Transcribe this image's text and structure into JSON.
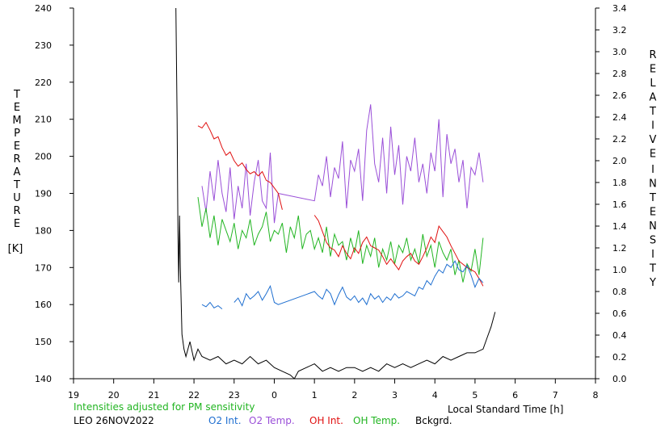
{
  "chart_data": {
    "type": "line",
    "left_axis": {
      "label_letters": [
        "T",
        "E",
        "M",
        "P",
        "E",
        "R",
        "A",
        "T",
        "U",
        "R",
        "E"
      ],
      "unit": "[K]",
      "range": [
        140,
        240
      ],
      "ticks": [
        140,
        150,
        160,
        170,
        180,
        190,
        200,
        210,
        220,
        230,
        240
      ]
    },
    "right_axis": {
      "label_letters_1": [
        "R",
        "E",
        "L",
        "A",
        "T",
        "I",
        "V",
        "E"
      ],
      "label_letters_2": [
        "I",
        "N",
        "T",
        "E",
        "N",
        "S",
        "I",
        "T",
        "Y"
      ],
      "range": [
        0.0,
        3.4
      ],
      "ticks": [
        "0.0",
        "0.2",
        "0.4",
        "0.6",
        "0.8",
        "1.0",
        "1.2",
        "1.4",
        "1.6",
        "1.8",
        "2.0",
        "2.2",
        "2.4",
        "2.6",
        "2.8",
        "3.0",
        "3.2",
        "3.4"
      ]
    },
    "x_axis": {
      "title": "Local Standard Time [h]",
      "range": [
        19,
        32
      ],
      "tick_labels": [
        "19",
        "20",
        "21",
        "22",
        "23",
        "0",
        "1",
        "2",
        "3",
        "4",
        "5",
        "6",
        "7",
        "8"
      ]
    },
    "note": "Intensities adjusted for PM sensitivity",
    "station": "LEO 26NOV2022",
    "legend": [
      {
        "label": "O2 Int.",
        "color": "#1f6fd0"
      },
      {
        "label": "O2 Temp.",
        "color": "#9a4fd8"
      },
      {
        "label": "OH Int.",
        "color": "#e01010"
      },
      {
        "label": "OH Temp.",
        "color": "#22b522"
      },
      {
        "label": "Bckgrd.",
        "color": "#000000"
      }
    ],
    "series": [
      {
        "name": "O2 Temp.",
        "axis": "left",
        "x": [
          22.2,
          22.3,
          22.4,
          22.5,
          22.6,
          22.7,
          22.8,
          22.9,
          23.0,
          23.1,
          23.2,
          23.3,
          23.4,
          23.5,
          23.6,
          23.7,
          23.8,
          23.9,
          24.0,
          24.1,
          25.0,
          25.1,
          25.2,
          25.3,
          25.4,
          25.5,
          25.6,
          25.7,
          25.8,
          25.9,
          26.0,
          26.1,
          26.2,
          26.3,
          26.4,
          26.5,
          26.6,
          26.7,
          26.8,
          26.9,
          27.0,
          27.1,
          27.2,
          27.3,
          27.4,
          27.5,
          27.6,
          27.7,
          27.8,
          27.9,
          28.0,
          28.1,
          28.2,
          28.3,
          28.4,
          28.5,
          28.6,
          28.7,
          28.8,
          28.9,
          29.0,
          29.1,
          29.2
        ],
        "y": [
          192,
          185,
          196,
          188,
          199,
          190,
          185,
          197,
          183,
          192,
          186,
          198,
          184,
          193,
          199,
          188,
          186,
          201,
          182,
          190,
          188,
          195,
          192,
          200,
          189,
          197,
          194,
          204,
          186,
          199,
          196,
          202,
          188,
          207,
          214,
          198,
          193,
          205,
          190,
          208,
          195,
          203,
          187,
          200,
          196,
          205,
          193,
          198,
          190,
          201,
          196,
          210,
          189,
          206,
          198,
          202,
          193,
          199,
          186,
          197,
          195,
          201,
          193
        ]
      },
      {
        "name": "OH Temp.",
        "axis": "left",
        "x": [
          22.1,
          22.2,
          22.3,
          22.4,
          22.5,
          22.6,
          22.7,
          22.8,
          22.9,
          23.0,
          23.1,
          23.2,
          23.3,
          23.4,
          23.5,
          23.6,
          23.7,
          23.8,
          23.9,
          24.0,
          24.1,
          24.2,
          24.3,
          24.4,
          24.5,
          24.6,
          24.7,
          24.8,
          24.9,
          25.0,
          25.1,
          25.2,
          25.3,
          25.4,
          25.5,
          25.6,
          25.7,
          25.8,
          25.9,
          26.0,
          26.1,
          26.2,
          26.3,
          26.4,
          26.5,
          26.6,
          26.7,
          26.8,
          26.9,
          27.0,
          27.1,
          27.2,
          27.3,
          27.4,
          27.5,
          27.6,
          27.7,
          27.8,
          27.9,
          28.0,
          28.1,
          28.2,
          28.3,
          28.4,
          28.5,
          28.6,
          28.7,
          28.8,
          28.9,
          29.0,
          29.1,
          29.2
        ],
        "y": [
          189,
          181,
          186,
          178,
          184,
          176,
          183,
          180,
          177,
          182,
          175,
          180,
          178,
          183,
          176,
          179,
          181,
          185,
          177,
          180,
          179,
          182,
          174,
          181,
          178,
          184,
          175,
          179,
          180,
          175,
          178,
          174,
          181,
          173,
          179,
          176,
          177,
          172,
          178,
          174,
          180,
          171,
          176,
          173,
          178,
          170,
          175,
          172,
          177,
          171,
          176,
          174,
          178,
          172,
          175,
          171,
          179,
          173,
          176,
          170,
          177,
          174,
          172,
          175,
          168,
          172,
          166,
          171,
          169,
          175,
          168,
          178
        ]
      },
      {
        "name": "OH Int.",
        "axis": "right",
        "x": [
          22.1,
          22.2,
          22.3,
          22.4,
          22.5,
          22.6,
          22.7,
          22.8,
          22.9,
          23.0,
          23.1,
          23.2,
          23.3,
          23.4,
          23.5,
          23.6,
          23.7,
          23.8,
          23.9,
          24.0,
          24.1,
          24.2,
          24.3,
          24.4,
          24.5,
          24.6,
          24.7,
          24.8,
          24.9,
          25.0,
          25.1,
          25.2,
          25.3,
          25.4,
          25.5,
          25.6,
          25.7,
          25.8,
          25.9,
          26.0,
          26.1,
          26.2,
          26.3,
          26.4,
          26.5,
          26.6,
          26.7,
          26.8,
          26.9,
          27.0,
          27.1,
          27.2,
          27.3,
          27.4,
          27.5,
          27.6,
          27.7,
          27.8,
          27.9,
          28.0,
          28.1,
          28.2,
          28.3,
          28.4,
          28.5,
          28.6,
          28.7,
          28.8,
          28.9,
          29.0,
          29.1,
          29.2
        ],
        "y": [
          2.32,
          2.3,
          2.35,
          2.28,
          2.2,
          2.22,
          2.12,
          2.05,
          2.08,
          2.0,
          1.95,
          1.98,
          1.92,
          1.88,
          1.9,
          1.86,
          1.9,
          1.82,
          1.8,
          1.75,
          1.7,
          1.55,
          null,
          null,
          null,
          null,
          null,
          null,
          null,
          1.5,
          1.45,
          1.35,
          1.25,
          1.2,
          1.18,
          1.12,
          1.22,
          1.15,
          1.1,
          1.2,
          1.15,
          1.25,
          1.3,
          1.22,
          1.2,
          1.18,
          1.12,
          1.05,
          1.1,
          1.05,
          1.0,
          1.08,
          1.12,
          1.15,
          1.08,
          1.05,
          1.12,
          1.2,
          1.3,
          1.25,
          1.4,
          1.35,
          1.3,
          1.22,
          1.15,
          1.08,
          1.05,
          1.02,
          1.0,
          0.98,
          0.92,
          0.85
        ]
      },
      {
        "name": "O2 Int.",
        "axis": "right",
        "x": [
          22.2,
          22.3,
          22.4,
          22.5,
          22.6,
          22.7,
          22.8,
          22.9,
          23.0,
          23.1,
          23.2,
          23.3,
          23.4,
          23.5,
          23.6,
          23.7,
          23.8,
          23.9,
          24.0,
          24.1,
          25.0,
          25.1,
          25.2,
          25.3,
          25.4,
          25.5,
          25.6,
          25.7,
          25.8,
          25.9,
          26.0,
          26.1,
          26.2,
          26.3,
          26.4,
          26.5,
          26.6,
          26.7,
          26.8,
          26.9,
          27.0,
          27.1,
          27.2,
          27.3,
          27.4,
          27.5,
          27.6,
          27.7,
          27.8,
          27.9,
          28.0,
          28.1,
          28.2,
          28.3,
          28.4,
          28.5,
          28.6,
          28.7,
          28.8,
          28.9,
          29.0,
          29.1,
          29.2
        ],
        "y": [
          0.68,
          0.66,
          0.7,
          0.65,
          0.67,
          0.64,
          null,
          null,
          0.7,
          0.74,
          0.67,
          0.78,
          0.73,
          0.76,
          0.8,
          0.72,
          0.78,
          0.85,
          0.7,
          0.68,
          0.8,
          0.76,
          0.73,
          0.82,
          0.78,
          0.68,
          0.77,
          0.84,
          0.75,
          0.72,
          0.76,
          0.7,
          0.74,
          0.68,
          0.78,
          0.73,
          0.76,
          0.7,
          0.75,
          0.72,
          0.78,
          0.74,
          0.76,
          0.8,
          0.78,
          0.76,
          0.84,
          0.82,
          0.9,
          0.86,
          0.94,
          1.0,
          0.97,
          1.05,
          1.02,
          1.08,
          1.0,
          0.98,
          1.04,
          0.95,
          0.84,
          0.92,
          0.88
        ]
      },
      {
        "name": "Bckgrd.",
        "axis": "left",
        "x": [
          21.55,
          21.58,
          21.6,
          21.62,
          21.64,
          21.66,
          21.7,
          21.75,
          21.8,
          21.9,
          22.0,
          22.1,
          22.2,
          22.4,
          22.6,
          22.8,
          23.0,
          23.2,
          23.4,
          23.6,
          23.8,
          24.0,
          24.2,
          24.4,
          24.5,
          24.6,
          24.8,
          25.0,
          25.2,
          25.4,
          25.6,
          25.8,
          26.0,
          26.2,
          26.4,
          26.6,
          26.8,
          27.0,
          27.2,
          27.4,
          27.6,
          27.8,
          28.0,
          28.2,
          28.4,
          28.6,
          28.8,
          29.0,
          29.2,
          29.3,
          29.4,
          29.5
        ],
        "y": [
          240,
          210,
          180,
          166,
          184,
          170,
          152,
          148,
          146,
          150,
          145,
          148,
          146,
          145,
          146,
          144,
          145,
          144,
          146,
          144,
          145,
          143,
          142,
          141,
          140,
          142,
          143,
          144,
          142,
          143,
          142,
          143,
          143,
          142,
          143,
          142,
          144,
          143,
          144,
          143,
          144,
          145,
          144,
          146,
          145,
          146,
          147,
          147,
          148,
          151,
          154,
          158
        ]
      }
    ]
  }
}
